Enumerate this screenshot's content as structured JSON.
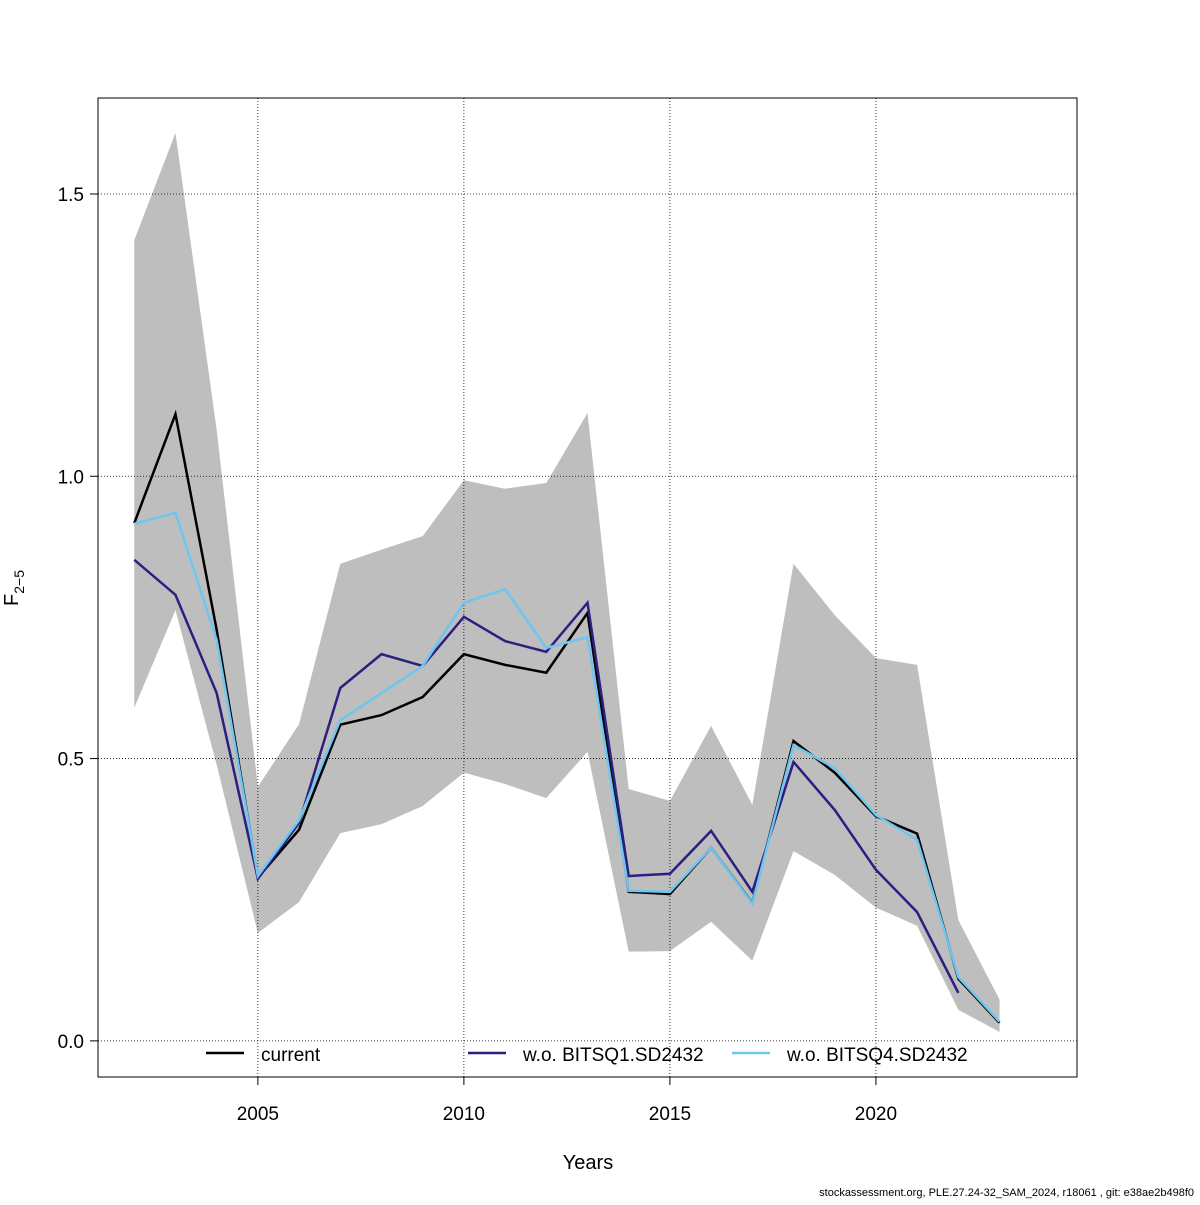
{
  "chart_data": {
    "type": "line",
    "xlabel": "Years",
    "ylabel": "F",
    "ylabel_sub": "2−5",
    "footer": "stockassessment.org, PLE.27.24-32_SAM_2024, r18061 , git: e38ae2b498f0",
    "x": [
      2002,
      2003,
      2004,
      2005,
      2006,
      2007,
      2008,
      2009,
      2010,
      2011,
      2012,
      2013,
      2014,
      2015,
      2016,
      2017,
      2018,
      2019,
      2020,
      2021,
      2022,
      2023
    ],
    "band": {
      "color": "#bebebe",
      "upper": [
        1.418,
        1.608,
        1.082,
        0.45,
        0.561,
        0.845,
        0.87,
        0.894,
        0.993,
        0.978,
        0.988,
        1.112,
        0.446,
        0.425,
        0.558,
        0.418,
        0.845,
        0.754,
        0.678,
        0.666,
        0.214,
        0.073
      ],
      "lower": [
        0.59,
        0.763,
        0.489,
        0.191,
        0.246,
        0.368,
        0.384,
        0.416,
        0.475,
        0.455,
        0.43,
        0.512,
        0.158,
        0.159,
        0.211,
        0.142,
        0.336,
        0.294,
        0.236,
        0.204,
        0.055,
        0.016
      ]
    },
    "series": [
      {
        "name": "current",
        "color": "#000000",
        "values": [
          0.917,
          1.11,
          0.728,
          0.289,
          0.374,
          0.56,
          0.577,
          0.609,
          0.685,
          0.666,
          0.652,
          0.758,
          0.264,
          0.26,
          0.342,
          0.244,
          0.531,
          0.475,
          0.398,
          0.367,
          0.11,
          0.032
        ]
      },
      {
        "name": "w.o. BITSQ1.SD2432",
        "color": "#2b1f7f",
        "values": [
          0.852,
          0.79,
          0.616,
          0.287,
          0.386,
          0.625,
          0.685,
          0.664,
          0.751,
          0.708,
          0.689,
          0.776,
          0.292,
          0.296,
          0.372,
          0.264,
          0.494,
          0.409,
          0.303,
          0.228,
          0.085,
          null
        ]
      },
      {
        "name": "w.o. BITSQ4.SD2432",
        "color": "#6ec6f0",
        "values": [
          0.916,
          0.935,
          0.71,
          0.292,
          0.391,
          0.568,
          0.616,
          0.664,
          0.776,
          0.8,
          0.696,
          0.715,
          0.266,
          0.264,
          0.342,
          0.243,
          0.524,
          0.483,
          0.4,
          0.356,
          0.113,
          0.034
        ]
      }
    ],
    "xlim": [
      2001.12,
      2024.88
    ],
    "ylim": [
      -0.064,
      1.67
    ],
    "xticks": [
      2005,
      2010,
      2015,
      2020
    ],
    "yticks": [
      {
        "value": 0,
        "label": "0.0"
      },
      0.5,
      {
        "value": 1,
        "label": "1.0"
      },
      1.5
    ],
    "grid": true,
    "legend": "bottom"
  }
}
